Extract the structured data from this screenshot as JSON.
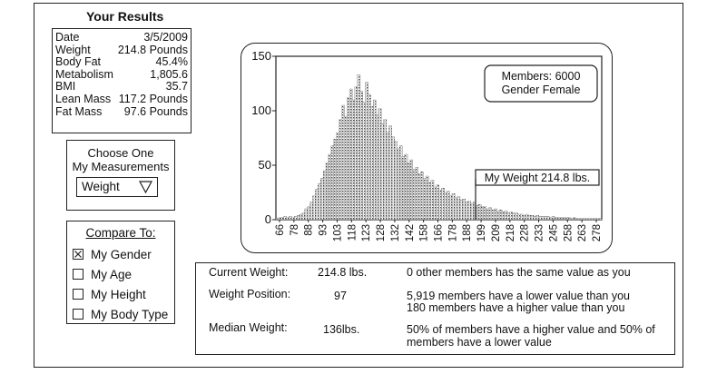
{
  "results": {
    "title": "Your Results",
    "rows": [
      {
        "label": "Date",
        "value": "3/5/2009"
      },
      {
        "label": "Weight",
        "value": "214.8 Pounds"
      },
      {
        "label": "Body Fat",
        "value": "45.4%"
      },
      {
        "label": "Metabolism",
        "value": "1,805.6"
      },
      {
        "label": "BMI",
        "value": "35.7"
      },
      {
        "label": "Lean Mass",
        "value": "117.2 Pounds"
      },
      {
        "label": "Fat Mass",
        "value": "97.6 Pounds"
      }
    ]
  },
  "choose": {
    "line1": "Choose One",
    "line2": "My Measurements",
    "selected": "Weight",
    "icon": "triangle-down-icon"
  },
  "compare": {
    "title": "Compare To:",
    "options": [
      {
        "label": "My Gender",
        "checked": true
      },
      {
        "label": "My Age",
        "checked": false
      },
      {
        "label": "My Height",
        "checked": false
      },
      {
        "label": "My Body Type",
        "checked": false
      }
    ]
  },
  "chart_data": {
    "type": "bar",
    "title": "",
    "xlabel": "",
    "ylabel": "",
    "ylim": [
      0,
      150
    ],
    "yticks": [
      0,
      50,
      100,
      150
    ],
    "xticks": [
      "66",
      "78",
      "88",
      "93",
      "103",
      "118",
      "123",
      "128",
      "132",
      "142",
      "158",
      "166",
      "178",
      "188",
      "199",
      "209",
      "218",
      "228",
      "233",
      "245",
      "258",
      "263",
      "278"
    ],
    "values": [
      1,
      2,
      2,
      3,
      2,
      3,
      2,
      3,
      4,
      5,
      6,
      10,
      12,
      16,
      22,
      28,
      33,
      38,
      45,
      52,
      60,
      68,
      74,
      80,
      92,
      105,
      95,
      112,
      120,
      110,
      122,
      133,
      118,
      108,
      126,
      115,
      104,
      110,
      96,
      102,
      88,
      92,
      80,
      86,
      76,
      72,
      65,
      68,
      58,
      60,
      52,
      55,
      46,
      48,
      42,
      44,
      38,
      40,
      34,
      36,
      30,
      32,
      27,
      29,
      25,
      26,
      22,
      24,
      20,
      21,
      18,
      19,
      16,
      17,
      15,
      16,
      13,
      14,
      12,
      12,
      10,
      11,
      9,
      10,
      8,
      9,
      7,
      8,
      6,
      7,
      6,
      6,
      5,
      5,
      4,
      5,
      4,
      4,
      3,
      4,
      3,
      3,
      3,
      3,
      2,
      3,
      2,
      2,
      2,
      2,
      2,
      2,
      1,
      2,
      1,
      1,
      1,
      1,
      1,
      1,
      1,
      1,
      1,
      1
    ],
    "legend_box": [
      "Members: 6000",
      "Gender Female"
    ],
    "annotation": "My Weight 214.8 lbs.",
    "grid": false
  },
  "stats": [
    {
      "label": "Current Weight:",
      "value": "214.8 lbs.",
      "desc": [
        "0 other members has the same value as you"
      ]
    },
    {
      "label": "Weight Position:",
      "value": "97",
      "desc": [
        "5,919 members have a lower value than you",
        "180 members have a higher value than you"
      ]
    },
    {
      "label": "Median Weight:",
      "value": "136lbs.",
      "desc": [
        "50% of members have a higher value and 50% of",
        "members have a lower value"
      ]
    }
  ]
}
